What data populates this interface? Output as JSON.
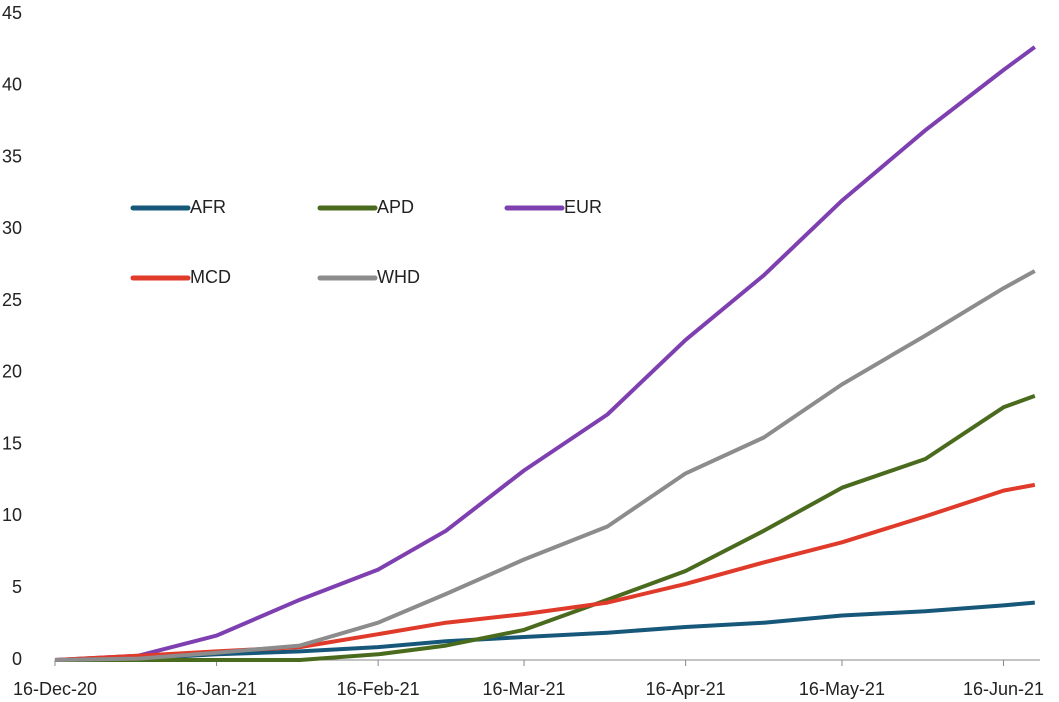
{
  "chart_data": {
    "type": "line",
    "x": [
      "16-Dec-20",
      "1-Jan-21",
      "16-Jan-21",
      "1-Feb-21",
      "16-Feb-21",
      "1-Mar-21",
      "16-Mar-21",
      "1-Apr-21",
      "16-Apr-21",
      "1-May-21",
      "16-May-21",
      "1-Jun-21",
      "16-Jun-21",
      "22-Jun-21"
    ],
    "series": [
      {
        "name": "AFR",
        "color": "#17587a",
        "values": [
          0,
          0.1,
          0.4,
          0.6,
          0.9,
          1.3,
          1.6,
          1.9,
          2.3,
          2.6,
          3.1,
          3.4,
          3.8,
          4.0
        ]
      },
      {
        "name": "APD",
        "color": "#4a6b1e",
        "values": [
          0,
          0,
          0,
          0,
          0.4,
          1.0,
          2.1,
          4.2,
          6.2,
          9.0,
          12.0,
          14.0,
          17.6,
          18.4
        ]
      },
      {
        "name": "EUR",
        "color": "#7e3fb0",
        "values": [
          0,
          0.3,
          1.7,
          4.2,
          6.3,
          9.0,
          13.2,
          17.1,
          22.3,
          26.8,
          32.0,
          36.9,
          41.1,
          42.7
        ]
      },
      {
        "name": "MCD",
        "color": "#e03a2a",
        "values": [
          0,
          0.3,
          0.6,
          0.9,
          1.8,
          2.6,
          3.2,
          4.0,
          5.3,
          6.8,
          8.2,
          10.0,
          11.8,
          12.2
        ]
      },
      {
        "name": "WHD",
        "color": "#8c8c8c",
        "values": [
          0,
          0.1,
          0.5,
          1.0,
          2.6,
          4.6,
          7.0,
          9.3,
          13.0,
          15.5,
          19.2,
          22.6,
          25.9,
          27.1
        ]
      }
    ],
    "xlim": [
      "16-Dec-20",
      "23-Jun-21"
    ],
    "xticks": [
      "16-Dec-20",
      "16-Jan-21",
      "16-Feb-21",
      "16-Mar-21",
      "16-Apr-21",
      "16-May-21",
      "16-Jun-21"
    ],
    "ylim": [
      0,
      45
    ],
    "yticks": [
      0,
      5,
      10,
      15,
      20,
      25,
      30,
      35,
      40,
      45
    ],
    "grid": false,
    "legend": "upper left"
  }
}
